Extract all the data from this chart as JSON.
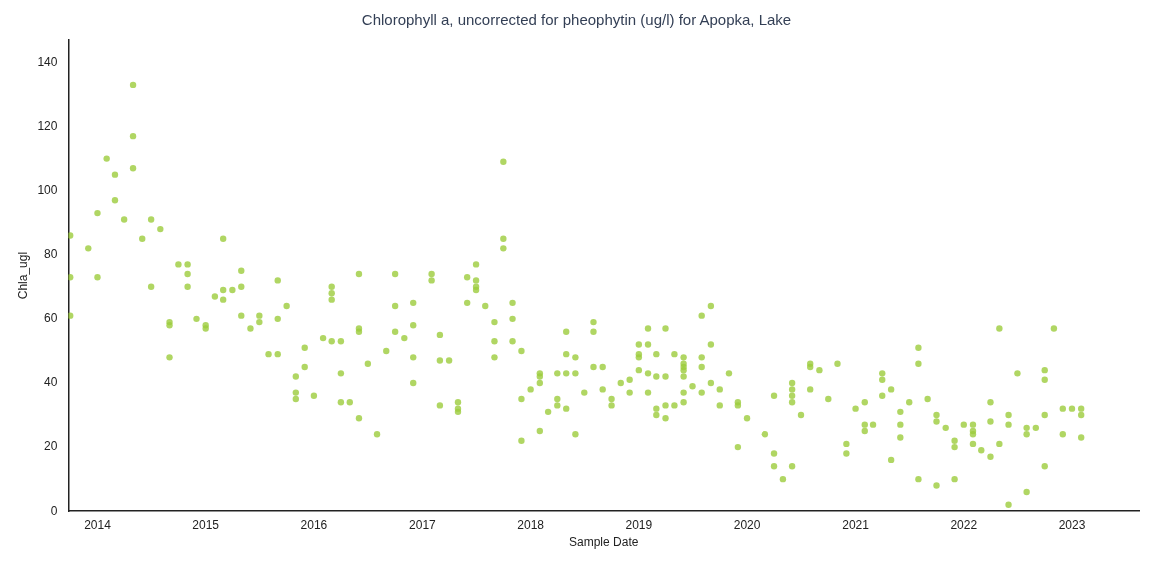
{
  "chart_data": {
    "type": "scatter",
    "title": "Chlorophyll a, uncorrected for pheophytin (ug/l) for Apopka, Lake",
    "xlabel": "Sample Date",
    "ylabel": "Chla_ugl",
    "color": "#9ccc3c",
    "marker": "circle",
    "grid": false,
    "legend": false,
    "x": [
      "2013-10",
      "2013-10",
      "2013-10",
      "2013-12",
      "2014-01",
      "2014-01",
      "2014-02",
      "2014-03",
      "2014-03",
      "2014-04",
      "2014-05",
      "2014-05",
      "2014-05",
      "2014-06",
      "2014-07",
      "2014-07",
      "2014-08",
      "2014-09",
      "2014-09",
      "2014-09",
      "2014-10",
      "2014-11",
      "2014-11",
      "2014-11",
      "2014-12",
      "2015-01",
      "2015-01",
      "2015-02",
      "2015-03",
      "2015-03",
      "2015-03",
      "2015-04",
      "2015-05",
      "2015-05",
      "2015-05",
      "2015-06",
      "2015-07",
      "2015-07",
      "2015-08",
      "2015-09",
      "2015-09",
      "2015-09",
      "2015-10",
      "2015-11",
      "2015-11",
      "2015-11",
      "2015-12",
      "2015-12",
      "2016-01",
      "2016-02",
      "2016-03",
      "2016-03",
      "2016-03",
      "2016-03",
      "2016-04",
      "2016-04",
      "2016-04",
      "2016-05",
      "2016-06",
      "2016-06",
      "2016-06",
      "2016-06",
      "2016-07",
      "2016-08",
      "2016-09",
      "2016-10",
      "2016-10",
      "2016-10",
      "2016-11",
      "2016-12",
      "2016-12",
      "2016-12",
      "2016-12",
      "2017-02",
      "2017-02",
      "2017-03",
      "2017-03",
      "2017-03",
      "2017-04",
      "2017-05",
      "2017-05",
      "2017-05",
      "2017-06",
      "2017-06",
      "2017-07",
      "2017-07",
      "2017-07",
      "2017-07",
      "2017-08",
      "2017-09",
      "2017-09",
      "2017-09",
      "2017-10",
      "2017-10",
      "2017-10",
      "2017-11",
      "2017-11",
      "2017-11",
      "2017-12",
      "2017-12",
      "2017-12",
      "2018-01",
      "2018-02",
      "2018-02",
      "2018-02",
      "2018-02",
      "2018-03",
      "2018-04",
      "2018-04",
      "2018-04",
      "2018-05",
      "2018-05",
      "2018-05",
      "2018-05",
      "2018-06",
      "2018-06",
      "2018-06",
      "2018-07",
      "2018-08",
      "2018-08",
      "2018-08",
      "2018-09",
      "2018-09",
      "2018-10",
      "2018-10",
      "2018-11",
      "2018-12",
      "2018-12",
      "2019-01",
      "2019-01",
      "2019-01",
      "2019-01",
      "2019-02",
      "2019-02",
      "2019-02",
      "2019-02",
      "2019-03",
      "2019-03",
      "2019-03",
      "2019-03",
      "2019-04",
      "2019-04",
      "2019-04",
      "2019-04",
      "2019-05",
      "2019-05",
      "2019-06",
      "2019-06",
      "2019-06",
      "2019-06",
      "2019-06",
      "2019-06",
      "2019-06",
      "2019-07",
      "2019-08",
      "2019-08",
      "2019-08",
      "2019-08",
      "2019-09",
      "2019-09",
      "2019-09",
      "2019-10",
      "2019-10",
      "2019-11",
      "2019-12",
      "2019-12",
      "2019-12",
      "2020-01",
      "2020-03",
      "2020-04",
      "2020-04",
      "2020-04",
      "2020-05",
      "2020-06",
      "2020-06",
      "2020-06",
      "2020-06",
      "2020-06",
      "2020-07",
      "2020-08",
      "2020-08",
      "2020-08",
      "2020-09",
      "2020-10",
      "2020-11",
      "2020-12",
      "2020-12",
      "2021-01",
      "2021-02",
      "2021-02",
      "2021-02",
      "2021-03",
      "2021-04",
      "2021-04",
      "2021-04",
      "2021-05",
      "2021-05",
      "2021-06",
      "2021-06",
      "2021-06",
      "2021-07",
      "2021-08",
      "2021-08",
      "2021-08",
      "2021-09",
      "2021-10",
      "2021-10",
      "2021-10",
      "2021-11",
      "2021-12",
      "2021-12",
      "2021-12",
      "2022-01",
      "2022-02",
      "2022-02",
      "2022-02",
      "2022-02",
      "2022-03",
      "2022-04",
      "2022-04",
      "2022-04",
      "2022-05",
      "2022-05",
      "2022-06",
      "2022-06",
      "2022-06",
      "2022-07",
      "2022-08",
      "2022-08",
      "2022-08",
      "2022-09",
      "2022-10",
      "2022-10",
      "2022-10",
      "2022-10",
      "2022-11",
      "2022-12",
      "2022-12",
      "2023-01",
      "2023-02",
      "2023-02",
      "2023-02"
    ],
    "values": [
      86,
      73,
      61,
      82,
      93,
      73,
      110,
      105,
      97,
      91,
      133,
      117,
      107,
      85,
      91,
      70,
      88,
      59,
      58,
      48,
      77,
      77,
      74,
      70,
      60,
      58,
      57,
      67,
      85,
      69,
      66,
      69,
      75,
      70,
      61,
      57,
      61,
      59,
      49,
      49,
      72,
      60,
      64,
      42,
      37,
      35,
      45,
      51,
      36,
      54,
      70,
      68,
      66,
      53,
      53,
      43,
      34,
      34,
      29,
      74,
      57,
      56,
      46,
      24,
      50,
      74,
      64,
      56,
      54,
      65,
      58,
      48,
      40,
      74,
      72,
      55,
      47,
      33,
      47,
      34,
      32,
      31,
      73,
      65,
      77,
      72,
      70,
      69,
      64,
      59,
      53,
      48,
      109,
      85,
      82,
      65,
      60,
      53,
      50,
      35,
      22,
      38,
      43,
      42,
      40,
      25,
      31,
      35,
      33,
      43,
      43,
      56,
      49,
      32,
      43,
      48,
      24,
      37,
      59,
      56,
      45,
      45,
      38,
      35,
      33,
      40,
      41,
      37,
      49,
      48,
      52,
      44,
      52,
      57,
      43,
      37,
      42,
      49,
      32,
      30,
      29,
      33,
      57,
      42,
      33,
      49,
      48,
      45,
      46,
      44,
      42,
      37,
      34,
      39,
      48,
      45,
      37,
      61,
      64,
      52,
      40,
      38,
      33,
      43,
      34,
      33,
      20,
      29,
      24,
      18,
      14,
      36,
      10,
      40,
      38,
      36,
      34,
      14,
      30,
      46,
      45,
      38,
      44,
      35,
      46,
      21,
      18,
      32,
      34,
      27,
      25,
      27,
      43,
      41,
      36,
      38,
      16,
      31,
      27,
      23,
      34,
      10,
      51,
      46,
      35,
      30,
      28,
      8,
      26,
      22,
      20,
      10,
      27,
      27,
      25,
      24,
      21,
      19,
      17,
      34,
      28,
      57,
      21,
      30,
      27,
      2,
      43,
      26,
      24,
      6,
      26,
      44,
      41,
      30,
      14,
      57,
      32,
      24,
      32,
      32,
      30,
      23
    ],
    "xlim": [
      "2013-09-25",
      "2023-08-15"
    ],
    "xticks": [
      "2014",
      "2015",
      "2016",
      "2017",
      "2018",
      "2019",
      "2020",
      "2021",
      "2022",
      "2023"
    ],
    "ylim": [
      0,
      147
    ],
    "yticks": [
      0,
      20,
      40,
      60,
      80,
      100,
      120,
      140
    ]
  }
}
